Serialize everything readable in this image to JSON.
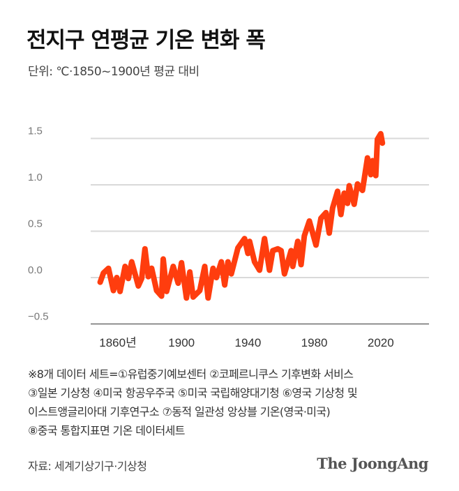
{
  "header": {
    "title": "전지구 연평균 기온 변화 폭",
    "subtitle": "단위: ℃·1850~1900년 평균 대비"
  },
  "chart_data": {
    "type": "line",
    "title": "전지구 연평균 기온 변화 폭",
    "ylabel": "단위: ℃·1850~1900년 평균 대비",
    "xlabel": "",
    "ylim": [
      -0.5,
      1.5
    ],
    "xlim": [
      1850,
      2060
    ],
    "y_ticks": [
      "1.5",
      "1.0",
      "0.5",
      "0.0",
      "−0.5"
    ],
    "y_tick_values": [
      1.5,
      1.0,
      0.5,
      0.0,
      -0.5
    ],
    "x_ticks": [
      "1860년",
      "1900",
      "1940",
      "1980",
      "2020"
    ],
    "x_tick_values": [
      1860,
      1900,
      1940,
      1980,
      2020
    ],
    "grid": true,
    "line_color": "#ff3d0e",
    "x": [
      1851,
      1853,
      1856,
      1859,
      1861,
      1863,
      1866,
      1868,
      1870,
      1872,
      1874,
      1876,
      1878,
      1880,
      1882,
      1885,
      1888,
      1889,
      1891,
      1895,
      1898,
      1900,
      1903,
      1905,
      1907,
      1911,
      1914,
      1916,
      1919,
      1921,
      1924,
      1926,
      1928,
      1930,
      1934,
      1938,
      1940,
      1941,
      1944,
      1947,
      1950,
      1953,
      1955,
      1958,
      1960,
      1962,
      1966,
      1967,
      1970,
      1972,
      1974,
      1977,
      1981,
      1984,
      1987,
      1989,
      1991,
      1994,
      1996,
      1998,
      2000,
      2001,
      2004,
      2006,
      2009,
      2012,
      2014,
      2015,
      2017,
      2018,
      2020,
      2021
    ],
    "values": [
      -0.05,
      0.05,
      0.1,
      -0.14,
      0,
      -0.15,
      0.12,
      -0.01,
      0.17,
      0.04,
      -0.09,
      -0.01,
      0.31,
      0.01,
      0.1,
      -0.14,
      -0.2,
      0.2,
      -0.15,
      0.12,
      -0.06,
      0.16,
      -0.22,
      0.06,
      -0.21,
      -0.14,
      0.12,
      -0.22,
      0.1,
      0,
      0.17,
      -0.08,
      0.17,
      0.04,
      0.32,
      0.42,
      0.26,
      0.39,
      0.17,
      0.08,
      0.42,
      0.08,
      0.29,
      0.31,
      0.29,
      0.04,
      0.29,
      0.12,
      0.39,
      0.14,
      0.45,
      0.61,
      0.35,
      0.64,
      0.7,
      0.48,
      0.75,
      0.93,
      0.68,
      0.91,
      0.8,
      0.99,
      0.79,
      1.01,
      0.94,
      1.29,
      1.11,
      1.26,
      1.1,
      1.49,
      1.55,
      1.45
    ]
  },
  "footer": {
    "notes": [
      "※8개 데이터 세트=①유럽중기예보센터 ②코페르니쿠스 기후변화 서비스",
      "③일본 기상청 ④미국 항공우주국 ⑤미국 국립해양대기청 ⑥영국 기상청 및",
      "이스트앵글리아대 기후연구소 ⑦동적 일관성 앙상블 기온(영국·미국)",
      "⑧중국 통합지표면 기온 데이터세트"
    ],
    "source": "자료: 세계기상기구·기상청",
    "logo": "The JoongAng"
  }
}
